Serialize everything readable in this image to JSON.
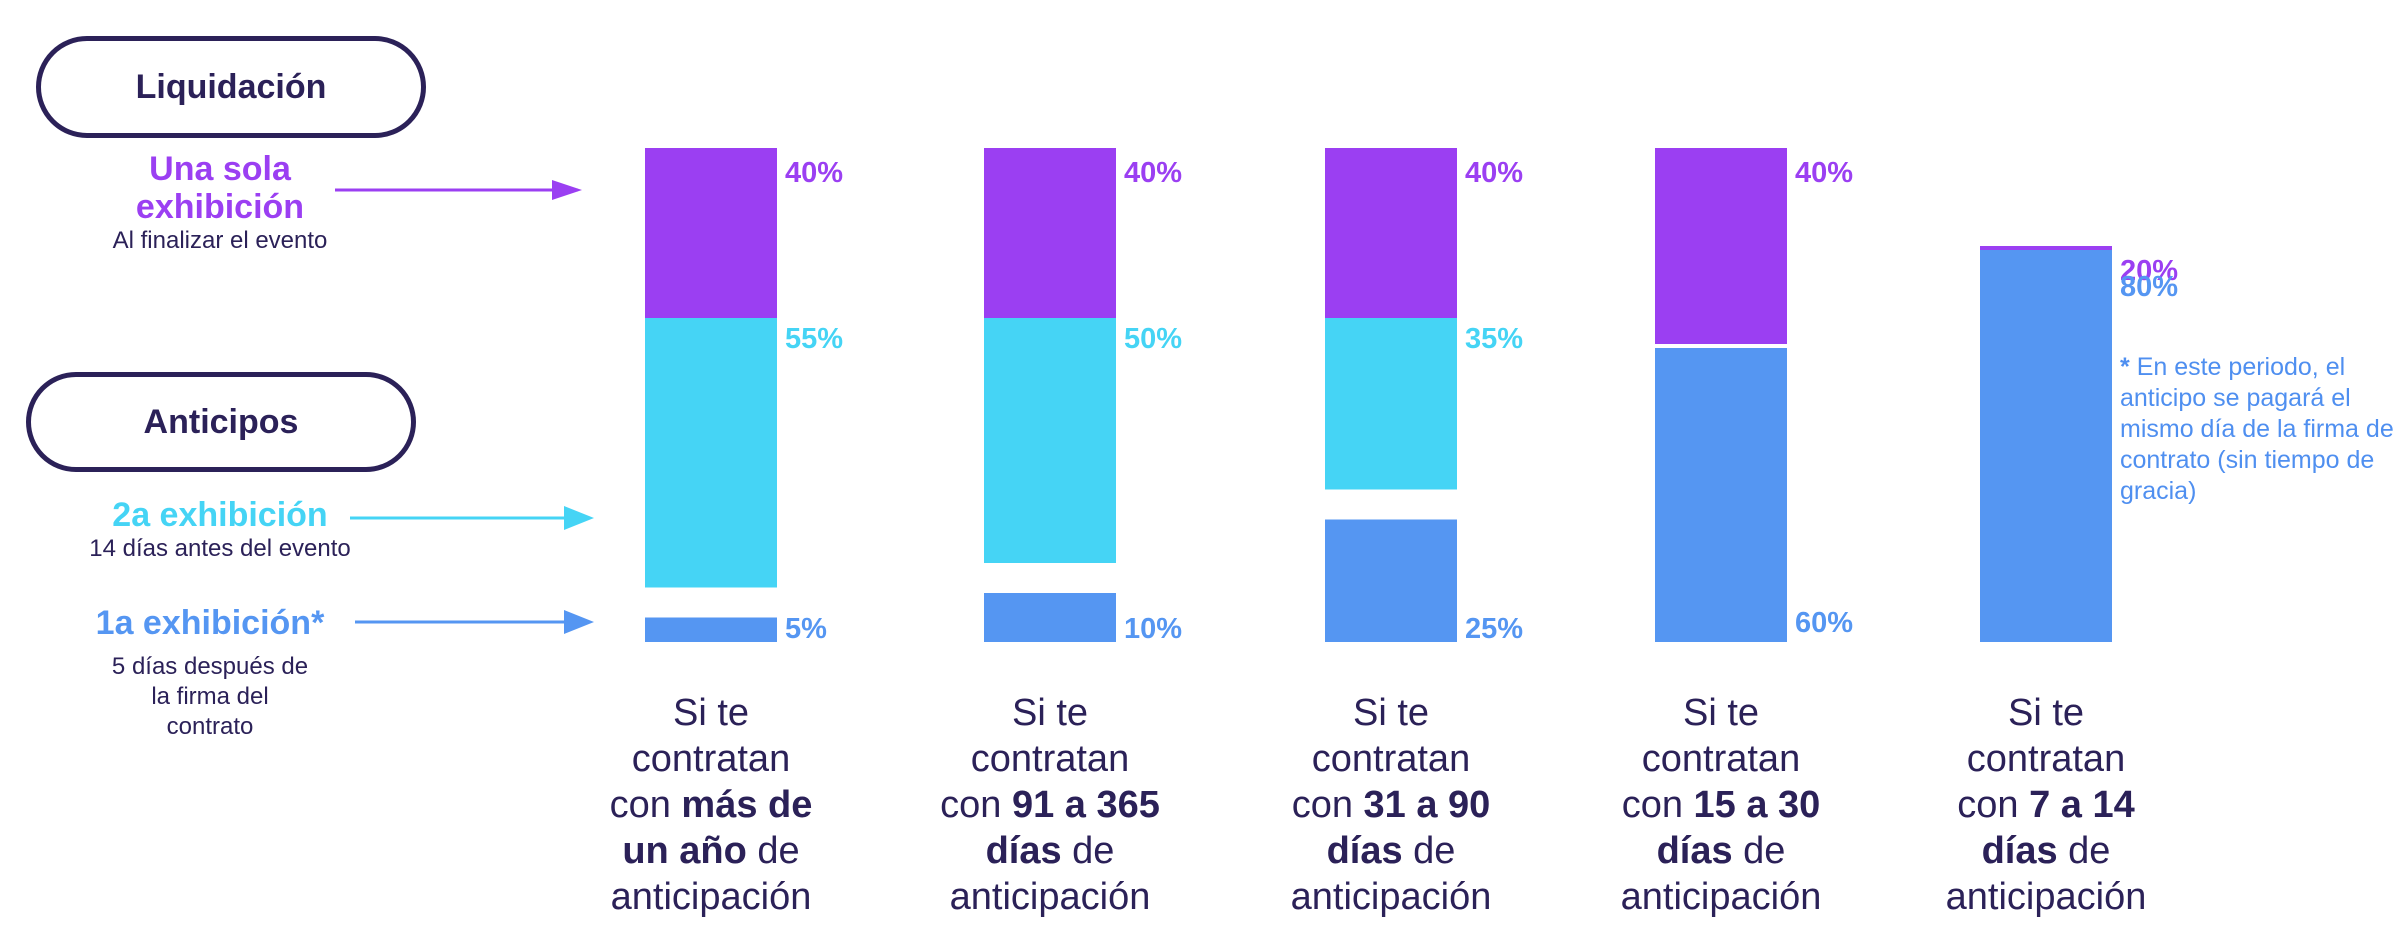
{
  "legend": {
    "liquidacion_label": "Liquidación",
    "anticipos_label": "Anticipos",
    "single": {
      "title_line1": "Una sola",
      "title_line2": "exhibición",
      "sub": "Al finalizar el evento"
    },
    "second": {
      "title": "2a exhibición",
      "sub": "14 días antes del evento"
    },
    "first": {
      "title": "1a exhibición*",
      "sub_line1": "5 días después de",
      "sub_line2": "la firma del",
      "sub_line3": "contrato"
    }
  },
  "captions": [
    {
      "l1": "Si te",
      "l2": "contratan",
      "l3_pre": "con",
      "l3_bold": "más de",
      "l4_bold": "un año",
      "l4_post": "de",
      "l5": "anticipación"
    },
    {
      "l1": "Si te",
      "l2": "contratan",
      "l3_pre": "con",
      "l3_bold": "91 a 365",
      "l4_bold": "días",
      "l4_post": "de",
      "l5": "anticipación"
    },
    {
      "l1": "Si te",
      "l2": "contratan",
      "l3_pre": "con",
      "l3_bold": "31 a 90",
      "l4_bold": "días",
      "l4_post": "de",
      "l5": "anticipación"
    },
    {
      "l1": "Si te",
      "l2": "contratan",
      "l3_pre": "con",
      "l3_bold": "15 a 30",
      "l4_bold": "días",
      "l4_post": "de",
      "l5": "anticipación"
    },
    {
      "l1": "Si te",
      "l2": "contratan",
      "l3_pre": "con",
      "l3_bold": "7 a 14",
      "l4_bold": "días",
      "l4_post": "de",
      "l5": "anticipación"
    }
  ],
  "note": {
    "star": "*",
    "text": "En este periodo, el anticipo se pagará el mismo día de la firma de contrato (sin tiempo de gracia)"
  },
  "colors": {
    "liquidacion": "#9b3ff2",
    "segunda": "#45d4f5",
    "primera": "#5596f2",
    "dark": "#2b2158"
  },
  "chart_data": {
    "type": "bar",
    "title": "",
    "categories": [
      "Más de un año",
      "91 a 365 días",
      "31 a 90 días",
      "15 a 30 días",
      "7 a 14 días"
    ],
    "series": [
      {
        "name": "Liquidación (una sola exhibición)",
        "values": [
          40,
          40,
          40,
          40,
          20
        ],
        "labels": [
          "40%",
          "40%",
          "40%",
          "40%",
          "20%"
        ]
      },
      {
        "name": "2a exhibición",
        "values": [
          55,
          50,
          35,
          0,
          0
        ],
        "labels": [
          "55%",
          "50%",
          "35%",
          "",
          ""
        ]
      },
      {
        "name": "1a exhibición",
        "values": [
          5,
          10,
          25,
          60,
          80
        ],
        "labels": [
          "5%",
          "10%",
          "25%",
          "60%",
          "80%"
        ]
      }
    ],
    "xlabel": "",
    "ylabel": "",
    "ylim": [
      0,
      100
    ]
  }
}
